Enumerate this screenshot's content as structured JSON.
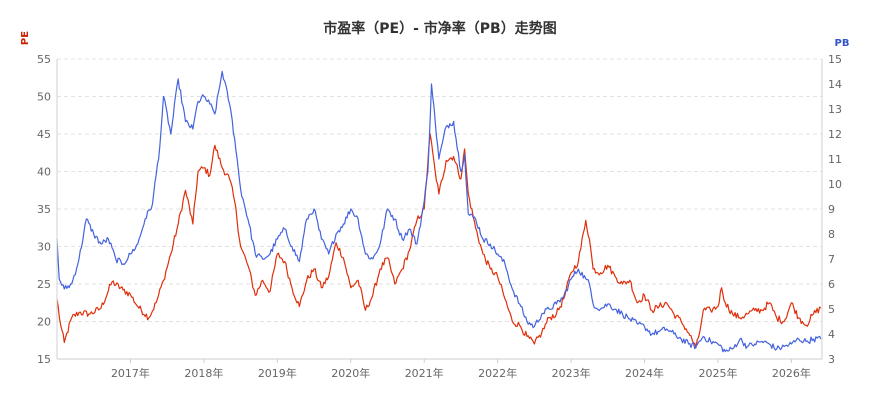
{
  "chart_data": {
    "type": "line",
    "title": "市盈率（PE）- 市净率（PB）走势图",
    "left_axis": {
      "label": "PE",
      "color": "#cc2200",
      "range": [
        15,
        55
      ],
      "ticks": [
        "15",
        "20",
        "25",
        "30",
        "35",
        "40",
        "45",
        "50",
        "55"
      ]
    },
    "right_axis": {
      "label": "PB",
      "color": "#3355cc",
      "range": [
        3,
        15
      ],
      "ticks": [
        "3",
        "4",
        "5",
        "6",
        "7",
        "8",
        "9",
        "10",
        "11",
        "12",
        "13",
        "14",
        "15"
      ]
    },
    "x_axis": {
      "range": [
        "2016-01",
        "2026-06"
      ],
      "ticks": [
        "2017年",
        "2018年",
        "2019年",
        "2020年",
        "2021年",
        "2022年",
        "2023年",
        "2024年",
        "2025年",
        "2026年"
      ]
    },
    "grid": true,
    "series": [
      {
        "key": "pe",
        "axis": "left",
        "color": "#e02e0a",
        "x": [
          2016.0,
          2016.05,
          2016.1,
          2016.2,
          2016.3,
          2016.45,
          2016.6,
          2016.75,
          2016.9,
          2017.0,
          2017.1,
          2017.25,
          2017.35,
          2017.45,
          2017.55,
          2017.65,
          2017.75,
          2017.85,
          2017.92,
          2018.0,
          2018.08,
          2018.15,
          2018.25,
          2018.35,
          2018.42,
          2018.5,
          2018.6,
          2018.7,
          2018.8,
          2018.9,
          2019.0,
          2019.1,
          2019.2,
          2019.3,
          2019.4,
          2019.5,
          2019.6,
          2019.7,
          2019.8,
          2019.9,
          2020.0,
          2020.1,
          2020.2,
          2020.3,
          2020.4,
          2020.5,
          2020.6,
          2020.7,
          2020.8,
          2020.9,
          2021.0,
          2021.08,
          2021.15,
          2021.2,
          2021.3,
          2021.4,
          2021.5,
          2021.55,
          2021.6,
          2021.7,
          2021.8,
          2021.9,
          2022.0,
          2022.1,
          2022.2,
          2022.3,
          2022.4,
          2022.5,
          2022.6,
          2022.7,
          2022.8,
          2022.9,
          2023.0,
          2023.1,
          2023.2,
          2023.25,
          2023.3,
          2023.4,
          2023.5,
          2023.6,
          2023.7,
          2023.8,
          2023.9,
          2024.0,
          2024.1,
          2024.2,
          2024.3,
          2024.4,
          2024.5,
          2024.6,
          2024.7,
          2024.75,
          2024.8,
          2024.9,
          2025.0,
          2025.05,
          2025.1,
          2025.2,
          2025.3,
          2025.4,
          2025.5,
          2025.6,
          2025.7,
          2025.8,
          2025.9,
          2026.0,
          2026.1,
          2026.15,
          2026.2,
          2026.3,
          2026.4
        ],
        "y": [
          23.0,
          19.5,
          17.2,
          20.5,
          21.2,
          21.0,
          21.8,
          25.3,
          24.2,
          23.6,
          22.0,
          20.5,
          22.5,
          25.5,
          29.0,
          33.0,
          37.5,
          33.0,
          40.0,
          40.5,
          39.5,
          43.5,
          40.5,
          39.0,
          36.0,
          30.0,
          27.5,
          23.5,
          25.5,
          24.0,
          29.0,
          28.0,
          24.5,
          22.0,
          25.5,
          27.0,
          24.5,
          26.0,
          30.5,
          28.5,
          24.5,
          25.5,
          21.5,
          23.5,
          27.0,
          28.5,
          25.0,
          27.0,
          29.5,
          33.5,
          35.0,
          45.0,
          40.0,
          37.0,
          41.5,
          42.0,
          39.0,
          43.0,
          37.0,
          32.5,
          29.0,
          27.0,
          26.0,
          23.0,
          20.0,
          19.5,
          18.0,
          17.0,
          18.5,
          20.5,
          21.0,
          23.0,
          26.5,
          28.0,
          33.5,
          31.0,
          27.0,
          26.5,
          27.5,
          26.0,
          25.0,
          25.5,
          22.5,
          23.5,
          21.5,
          22.0,
          22.5,
          21.0,
          20.0,
          18.5,
          16.5,
          18.5,
          21.5,
          21.5,
          22.0,
          24.5,
          22.5,
          21.0,
          20.5,
          21.0,
          21.5,
          21.5,
          22.5,
          20.5,
          20.0,
          22.5,
          20.5,
          20.0,
          19.5,
          21.0,
          21.8
        ]
      },
      {
        "key": "pb",
        "axis": "right",
        "color": "#4462dd",
        "x": [
          2016.0,
          2016.03,
          2016.1,
          2016.2,
          2016.3,
          2016.4,
          2016.5,
          2016.6,
          2016.7,
          2016.8,
          2016.9,
          2017.0,
          2017.1,
          2017.2,
          2017.3,
          2017.4,
          2017.45,
          2017.55,
          2017.65,
          2017.75,
          2017.85,
          2017.92,
          2018.0,
          2018.08,
          2018.15,
          2018.25,
          2018.35,
          2018.42,
          2018.5,
          2018.6,
          2018.7,
          2018.8,
          2018.9,
          2019.0,
          2019.1,
          2019.2,
          2019.3,
          2019.4,
          2019.5,
          2019.6,
          2019.7,
          2019.8,
          2019.9,
          2020.0,
          2020.1,
          2020.2,
          2020.3,
          2020.4,
          2020.5,
          2020.6,
          2020.7,
          2020.8,
          2020.9,
          2021.0,
          2021.05,
          2021.1,
          2021.15,
          2021.2,
          2021.3,
          2021.4,
          2021.5,
          2021.55,
          2021.6,
          2021.7,
          2021.8,
          2021.9,
          2022.0,
          2022.1,
          2022.2,
          2022.3,
          2022.4,
          2022.5,
          2022.6,
          2022.7,
          2022.8,
          2022.9,
          2023.0,
          2023.1,
          2023.2,
          2023.25,
          2023.3,
          2023.4,
          2023.5,
          2023.6,
          2023.7,
          2023.8,
          2023.9,
          2024.0,
          2024.1,
          2024.2,
          2024.3,
          2024.4,
          2024.5,
          2024.6,
          2024.7,
          2024.8,
          2024.9,
          2025.0,
          2025.1,
          2025.2,
          2025.3,
          2025.4,
          2025.5,
          2025.6,
          2025.7,
          2025.8,
          2025.9,
          2026.0,
          2026.1,
          2026.2,
          2026.3,
          2026.4
        ],
        "y": [
          7.8,
          6.2,
          5.8,
          6.0,
          7.0,
          8.6,
          8.0,
          7.6,
          7.8,
          7.0,
          6.8,
          7.2,
          7.6,
          8.6,
          9.2,
          11.5,
          13.5,
          12.0,
          14.2,
          12.5,
          12.2,
          13.3,
          13.5,
          13.2,
          12.8,
          14.5,
          13.2,
          11.8,
          9.8,
          8.6,
          7.2,
          7.0,
          7.2,
          7.8,
          8.2,
          7.5,
          6.9,
          8.6,
          9.0,
          7.8,
          7.2,
          8.0,
          8.4,
          9.0,
          8.6,
          7.2,
          7.0,
          7.6,
          9.0,
          8.6,
          7.8,
          8.2,
          7.6,
          9.3,
          10.5,
          14.0,
          12.5,
          11.0,
          12.3,
          12.5,
          10.5,
          11.2,
          8.8,
          8.6,
          7.8,
          7.6,
          7.2,
          6.8,
          5.8,
          5.2,
          4.5,
          4.3,
          4.8,
          5.0,
          5.2,
          5.5,
          6.2,
          6.6,
          6.2,
          6.0,
          5.2,
          5.0,
          5.2,
          5.0,
          4.8,
          4.6,
          4.4,
          4.3,
          4.0,
          4.1,
          4.2,
          4.0,
          3.8,
          3.6,
          3.5,
          3.9,
          3.7,
          3.6,
          3.3,
          3.4,
          3.8,
          3.5,
          3.6,
          3.7,
          3.6,
          3.4,
          3.5,
          3.6,
          3.8,
          3.7,
          3.8,
          3.8
        ]
      }
    ]
  }
}
